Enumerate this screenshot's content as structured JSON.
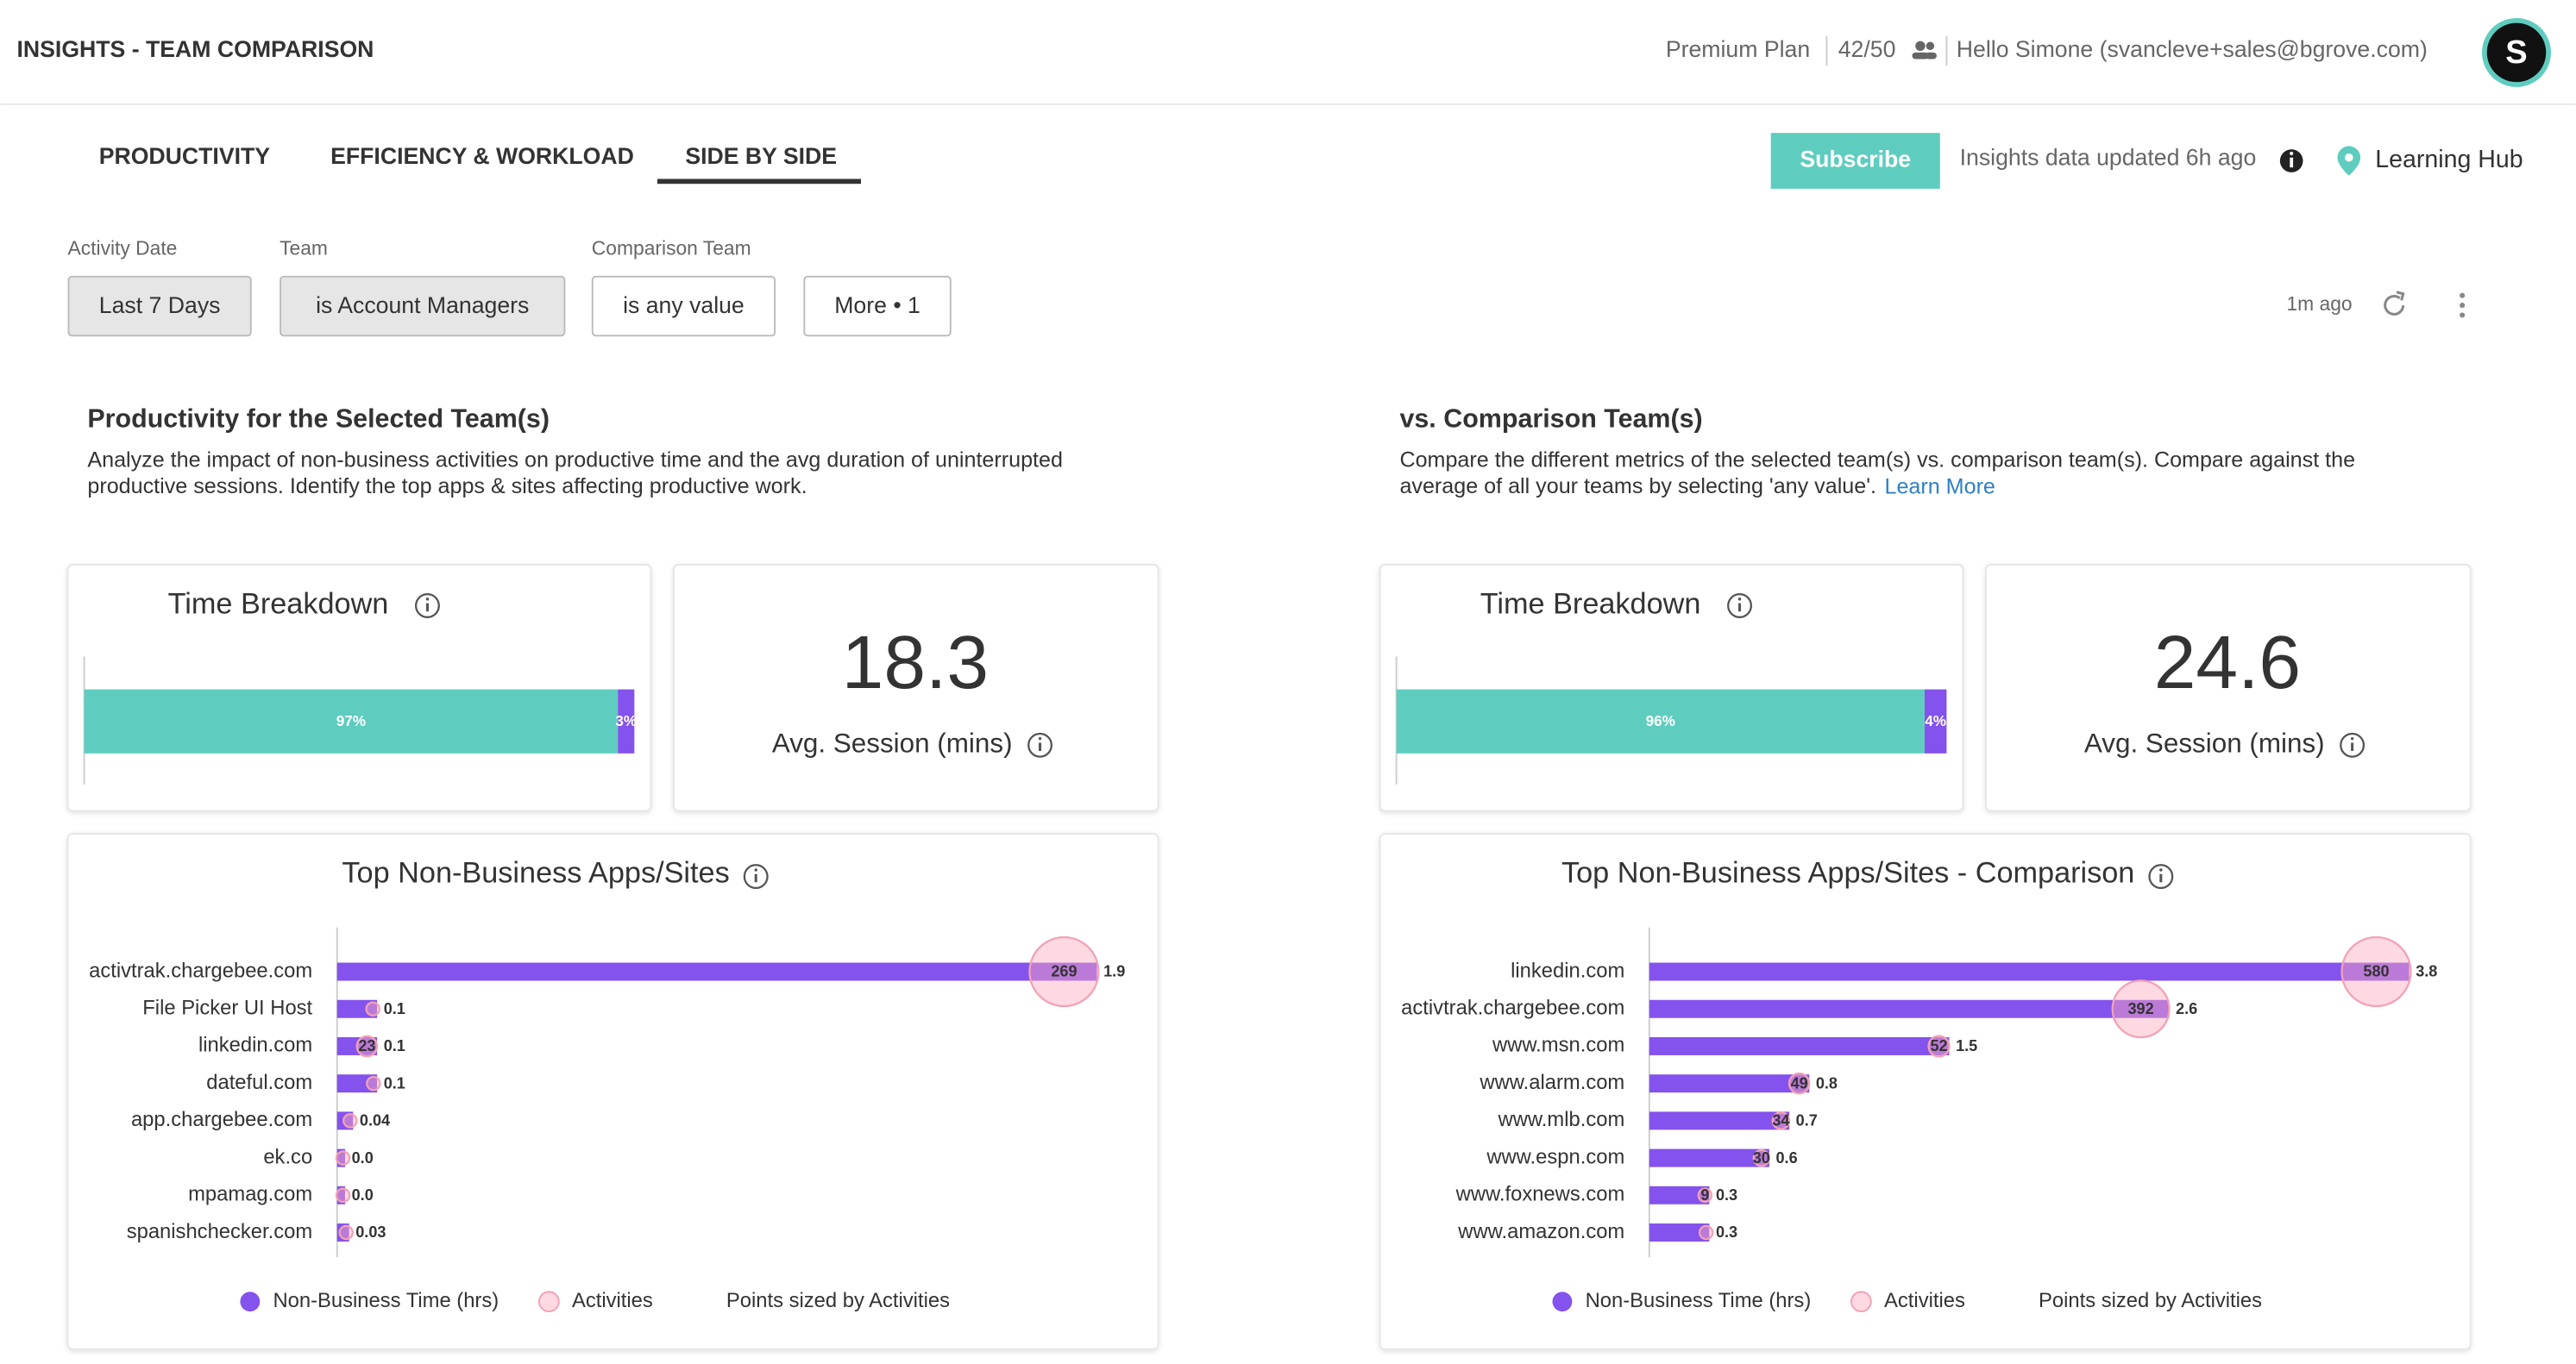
{
  "header": {
    "title": "INSIGHTS - TEAM COMPARISON",
    "plan": "Premium Plan",
    "seats": "42/50",
    "greeting": "Hello Simone (svancleve+sales@bgrove.com)",
    "avatar": "S"
  },
  "tabs": [
    "PRODUCTIVITY",
    "EFFICIENCY & WORKLOAD",
    "SIDE BY SIDE"
  ],
  "toolbar": {
    "subscribe": "Subscribe",
    "updated": "Insights data updated 6h ago",
    "learning_hub": "Learning Hub"
  },
  "filters": [
    {
      "label": "Activity Date",
      "value": "Last 7 Days"
    },
    {
      "label": "Team",
      "value": "is Account Managers"
    },
    {
      "label": "Comparison Team",
      "value": "is any value"
    },
    {
      "value": "More • 1"
    }
  ],
  "refreshed": "1m ago",
  "panels": [
    {
      "heading": "Productivity for the Selected Team(s)",
      "description": [
        "Analyze the impact of non-business activities on productive time and the avg duration of uninterrupted",
        "productive sessions. Identify the top apps & sites affecting productive work."
      ],
      "time_breakdown": {
        "title": "Time Breakdown",
        "values": [
          97,
          3
        ],
        "value_labels": [
          "97%",
          "3%"
        ],
        "colors": [
          "#5ecdbf",
          "#8452ec"
        ]
      },
      "avg_session": {
        "value": 18.3,
        "label": "Avg. Session (mins)"
      },
      "apps": {
        "type": "bar",
        "title": "Top Non-Business Apps/Sites",
        "categories": [
          "activtrak.chargebee.com",
          "File Picker UI Host",
          "linkedin.com",
          "dateful.com",
          "app.chargebee.com",
          "ek.co",
          "mpamag.com",
          "spanishchecker.com"
        ],
        "values": [
          1.9,
          0.1,
          0.1,
          0.1,
          0.04,
          0.02,
          0.02,
          0.03
        ],
        "value_labels": [
          "1.9",
          "0.1",
          "0.1",
          "0.1",
          "0.04",
          "0.0",
          "0.0",
          "0.03"
        ],
        "activities": [
          269,
          4,
          23,
          3,
          2,
          1,
          1,
          2
        ],
        "activity_labels": [
          "269",
          null,
          "23",
          null,
          null,
          null,
          null,
          null
        ],
        "xlim": [
          0,
          2
        ],
        "color": "#8452ec",
        "legend": [
          "Non-Business Time (hrs)",
          "Activities",
          "Points sized by Activities"
        ]
      }
    },
    {
      "heading": "vs. Comparison Team(s)",
      "description": [
        "Compare the different metrics of the selected team(s) vs. comparison team(s). Compare against the",
        "average of all your teams by selecting 'any value'."
      ],
      "link": "Learn More",
      "time_breakdown": {
        "title": "Time Breakdown",
        "values": [
          96,
          4
        ],
        "value_labels": [
          "96%",
          "4%"
        ],
        "colors": [
          "#5ecdbf",
          "#8452ec"
        ]
      },
      "avg_session": {
        "value": 24.6,
        "label": "Avg. Session (mins)"
      },
      "apps": {
        "type": "bar",
        "title": "Top Non-Business Apps/Sites - Comparison",
        "categories": [
          "linkedin.com",
          "activtrak.chargebee.com",
          "www.msn.com",
          "www.alarm.com",
          "www.mlb.com",
          "www.espn.com",
          "www.foxnews.com",
          "www.amazon.com"
        ],
        "values": [
          3.8,
          2.6,
          1.5,
          0.8,
          0.7,
          0.6,
          0.3,
          0.3
        ],
        "activities": [
          580,
          392,
          52,
          49,
          34,
          30,
          9,
          5
        ],
        "activity_labels": [
          "580",
          "392",
          "52",
          "49",
          "34",
          "30",
          "9",
          null
        ],
        "xlim": [
          0,
          4
        ],
        "color": "#8452ec",
        "legend": [
          "Non-Business Time (hrs)",
          "Activities",
          "Points sized by Activities"
        ]
      }
    }
  ]
}
